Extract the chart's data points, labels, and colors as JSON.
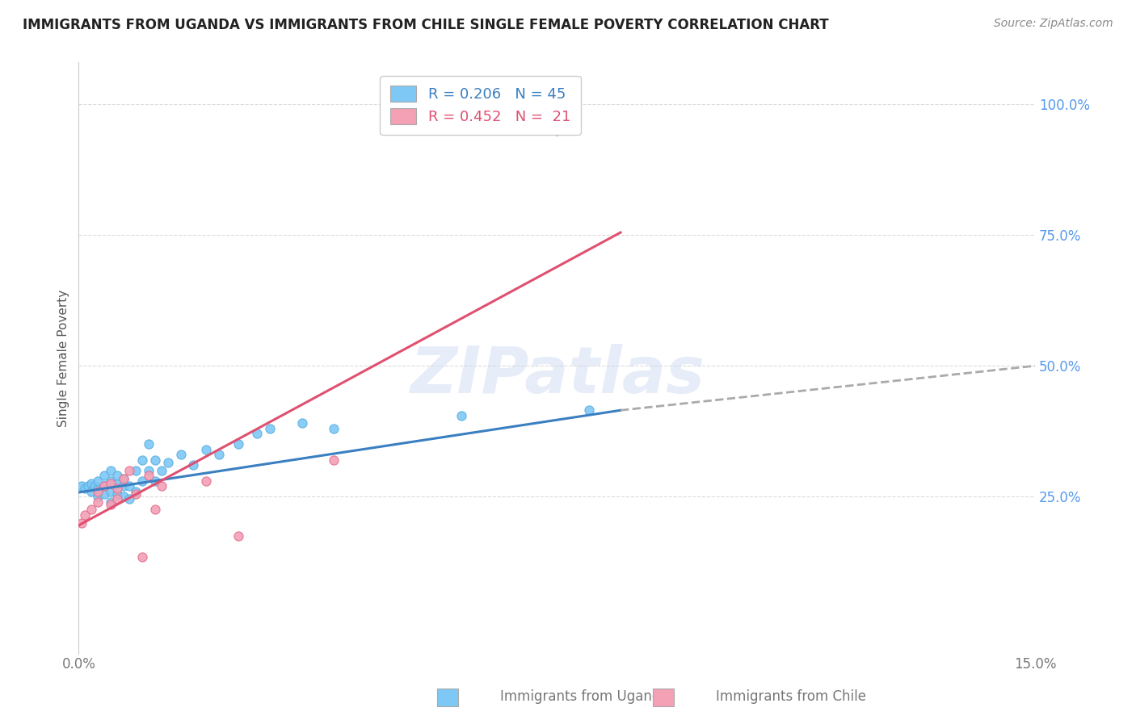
{
  "title": "IMMIGRANTS FROM UGANDA VS IMMIGRANTS FROM CHILE SINGLE FEMALE POVERTY CORRELATION CHART",
  "source_text": "Source: ZipAtlas.com",
  "ylabel": "Single Female Poverty",
  "watermark": "ZIPatlas",
  "legend_r_uganda": "0.206",
  "legend_n_uganda": "45",
  "legend_r_chile": "0.452",
  "legend_n_chile": "21",
  "xlim": [
    0.0,
    0.15
  ],
  "ylim": [
    -0.05,
    1.08
  ],
  "ytick_labels": [
    "25.0%",
    "50.0%",
    "75.0%",
    "100.0%"
  ],
  "ytick_positions": [
    0.25,
    0.5,
    0.75,
    1.0
  ],
  "xtick_positions": [
    0.0,
    0.15
  ],
  "xtick_labels": [
    "0.0%",
    "15.0%"
  ],
  "color_uganda": "#7ec8f5",
  "color_uganda_edge": "#5ab0e0",
  "color_chile": "#f4a0b5",
  "color_chile_edge": "#e07090",
  "trendline_uganda_color": "#3a7fc1",
  "trendline_chile_color": "#e05070",
  "trendline_dashed_color": "#aaaaaa",
  "background_color": "#ffffff",
  "grid_color": "#cccccc",
  "title_color": "#222222",
  "ylabel_color": "#555555",
  "ytick_color": "#5599ee",
  "xtick_color": "#777777",
  "source_color": "#888888",
  "uganda_x": [
    0.0005,
    0.001,
    0.0015,
    0.002,
    0.002,
    0.0025,
    0.003,
    0.003,
    0.003,
    0.004,
    0.004,
    0.004,
    0.005,
    0.005,
    0.005,
    0.005,
    0.006,
    0.006,
    0.006,
    0.007,
    0.007,
    0.007,
    0.008,
    0.008,
    0.009,
    0.009,
    0.01,
    0.01,
    0.011,
    0.011,
    0.012,
    0.012,
    0.013,
    0.014,
    0.016,
    0.018,
    0.02,
    0.022,
    0.025,
    0.028,
    0.03,
    0.035,
    0.04,
    0.06,
    0.08
  ],
  "uganda_y": [
    0.27,
    0.265,
    0.27,
    0.275,
    0.26,
    0.27,
    0.25,
    0.265,
    0.28,
    0.255,
    0.27,
    0.29,
    0.24,
    0.26,
    0.28,
    0.3,
    0.255,
    0.275,
    0.29,
    0.25,
    0.27,
    0.285,
    0.245,
    0.27,
    0.26,
    0.3,
    0.28,
    0.32,
    0.3,
    0.35,
    0.28,
    0.32,
    0.3,
    0.315,
    0.33,
    0.31,
    0.34,
    0.33,
    0.35,
    0.37,
    0.38,
    0.39,
    0.38,
    0.405,
    0.415
  ],
  "chile_x": [
    0.0005,
    0.001,
    0.002,
    0.003,
    0.003,
    0.004,
    0.005,
    0.005,
    0.006,
    0.006,
    0.007,
    0.008,
    0.009,
    0.01,
    0.011,
    0.012,
    0.013,
    0.02,
    0.025,
    0.04,
    0.075
  ],
  "chile_y": [
    0.2,
    0.215,
    0.225,
    0.24,
    0.26,
    0.27,
    0.235,
    0.275,
    0.245,
    0.265,
    0.285,
    0.3,
    0.255,
    0.135,
    0.29,
    0.225,
    0.27,
    0.28,
    0.175,
    0.32,
    0.95
  ],
  "ug_trend_x0": 0.0,
  "ug_trend_y0": 0.258,
  "ug_trend_x1": 0.085,
  "ug_trend_y1": 0.415,
  "ug_trend_dash_x0": 0.085,
  "ug_trend_dash_x1": 0.15,
  "ug_trend_dash_y0": 0.415,
  "ug_trend_dash_y1": 0.5,
  "ch_trend_x0": 0.0,
  "ch_trend_y0": 0.195,
  "ch_trend_x1": 0.085,
  "ch_trend_y1": 0.755
}
